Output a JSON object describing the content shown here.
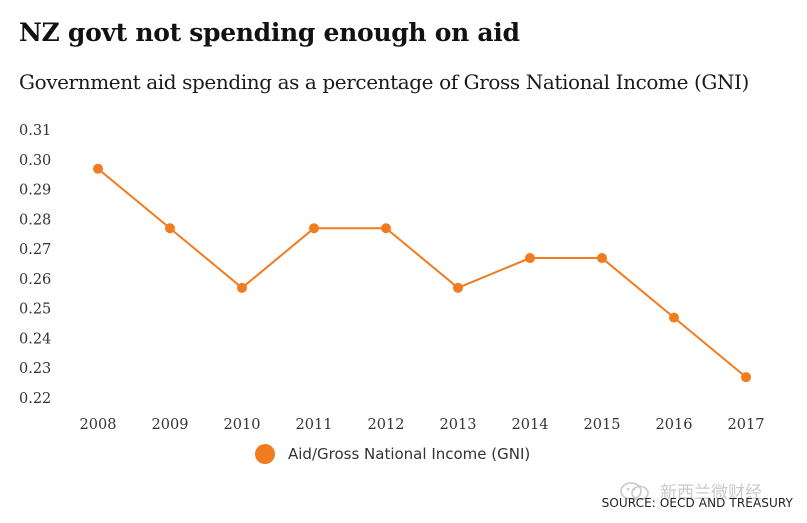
{
  "title": "NZ govt not spending enough on aid",
  "subtitle": "Government aid spending as a percentage of Gross National Income (GNI)",
  "source": "SOURCE: OECD AND TREASURY",
  "watermark": "新西兰微财经",
  "colors": {
    "series": "#f07c20",
    "background": "#ffffff"
  },
  "chart_data": {
    "type": "line",
    "x": [
      "2008",
      "2009",
      "2010",
      "2011",
      "2012",
      "2013",
      "2014",
      "2015",
      "2016",
      "2017"
    ],
    "series": [
      {
        "name": "Aid/Gross National Income (GNI)",
        "values": [
          0.297,
          0.277,
          0.257,
          0.277,
          0.277,
          0.257,
          0.267,
          0.267,
          0.247,
          0.227
        ]
      }
    ],
    "y_ticks": [
      "0.31",
      "0.30",
      "0.29",
      "0.28",
      "0.27",
      "0.26",
      "0.25",
      "0.24",
      "0.23",
      "0.22"
    ],
    "ylim": [
      0.22,
      0.31
    ],
    "grid": false,
    "legend": "bottom-center"
  }
}
